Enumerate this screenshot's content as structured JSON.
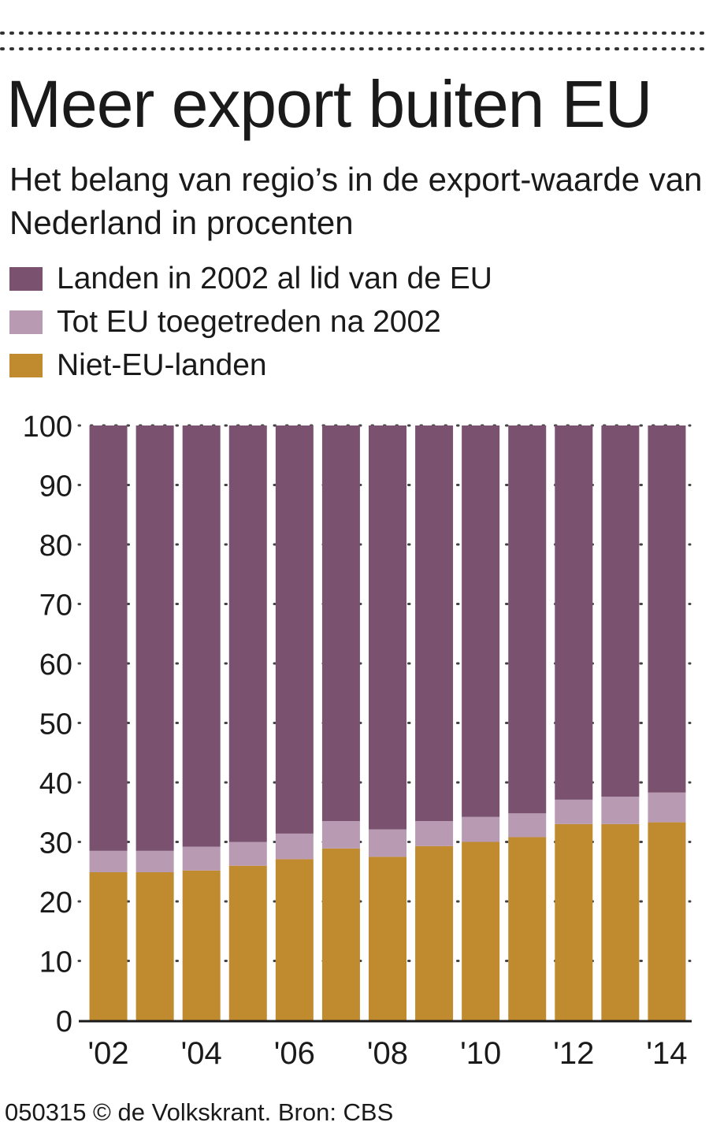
{
  "header": {
    "title": "Meer export buiten EU",
    "subtitle": "Het belang van regio’s in de export-waarde van Nederland in procenten"
  },
  "legend": {
    "items": [
      {
        "label": "Landen in 2002 al lid van de EU",
        "color": "#7a5270"
      },
      {
        "label": "Tot EU toegetreden na 2002",
        "color": "#b89ab3"
      },
      {
        "label": "Niet-EU-landen",
        "color": "#c08a2e"
      }
    ]
  },
  "footer": {
    "credit": "050315 © de Volkskrant. Bron: CBS"
  },
  "chart_data": {
    "type": "bar",
    "stacked": true,
    "categories": [
      "2002",
      "2003",
      "2004",
      "2005",
      "2006",
      "2007",
      "2008",
      "2009",
      "2010",
      "2011",
      "2012",
      "2013",
      "2014"
    ],
    "x_tick_labels": [
      "'02",
      "",
      "'04",
      "",
      "'06",
      "",
      "'08",
      "",
      "'10",
      "",
      "'12",
      "",
      "'14"
    ],
    "series": [
      {
        "name": "Niet-EU-landen",
        "color": "#c08a2e",
        "values": [
          24.9,
          24.9,
          25.2,
          26.0,
          27.1,
          28.9,
          27.5,
          29.3,
          30.0,
          30.8,
          33.0,
          33.0,
          33.3
        ]
      },
      {
        "name": "Tot EU toegetreden na 2002",
        "color": "#b89ab3",
        "values": [
          3.6,
          3.6,
          4.0,
          4.0,
          4.3,
          4.6,
          4.6,
          4.2,
          4.2,
          4.0,
          4.1,
          4.6,
          5.0
        ]
      },
      {
        "name": "Landen in 2002 al lid van de EU",
        "color": "#7a5270",
        "values": [
          71.5,
          71.5,
          70.8,
          70.0,
          68.6,
          66.5,
          67.9,
          66.5,
          65.8,
          65.2,
          62.9,
          62.4,
          61.7
        ]
      }
    ],
    "ylim": [
      0,
      100
    ],
    "yticks": [
      0,
      10,
      20,
      30,
      40,
      50,
      60,
      70,
      80,
      90,
      100
    ],
    "ylabel": "",
    "xlabel": "",
    "grid": "dotted"
  }
}
